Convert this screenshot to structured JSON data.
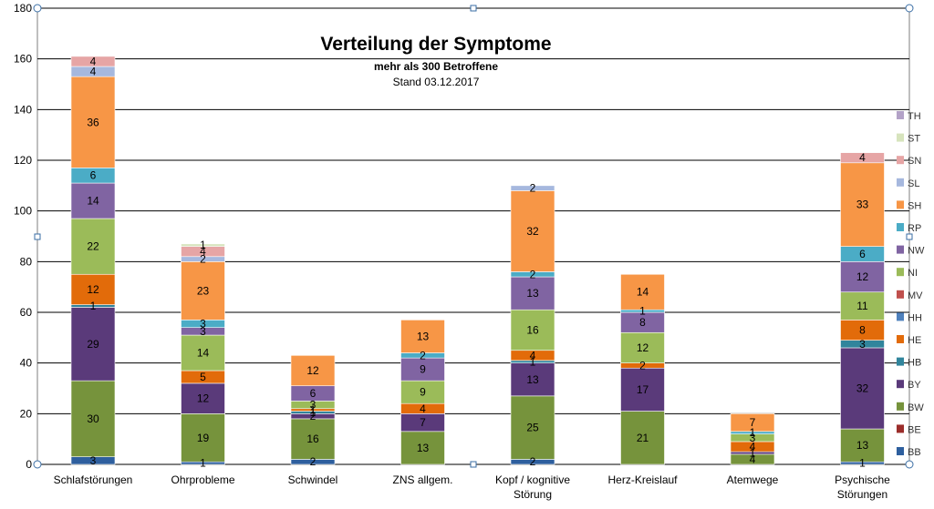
{
  "chart_data": {
    "type": "bar",
    "stacked": true,
    "title": "Verteilung der Symptome",
    "subtitle": "mehr als 300 Betroffene",
    "note": "Stand 03.12.2017",
    "ylim": [
      0,
      180
    ],
    "yticks": [
      0,
      20,
      40,
      60,
      80,
      100,
      120,
      140,
      160,
      180
    ],
    "grid": true,
    "legend_position": "right",
    "categories": [
      [
        "Schlafstörungen"
      ],
      [
        "Ohrprobleme"
      ],
      [
        "Schwindel"
      ],
      [
        "ZNS allgem."
      ],
      [
        "Kopf / kognitive",
        "Störung"
      ],
      [
        "Herz-Kreislauf"
      ],
      [
        "Atemwege"
      ],
      [
        "Psychische",
        "Störungen"
      ]
    ],
    "series": [
      {
        "name": "BB",
        "color": "#2e5f9e",
        "values": [
          3,
          1,
          2,
          0,
          2,
          0,
          0,
          1
        ]
      },
      {
        "name": "BE",
        "color": "#9b2d2a",
        "values": [
          0,
          0,
          0,
          0,
          0,
          0,
          0,
          0
        ]
      },
      {
        "name": "BW",
        "color": "#76933c",
        "values": [
          30,
          19,
          16,
          13,
          25,
          21,
          4,
          13
        ]
      },
      {
        "name": "BY",
        "color": "#5a3a7a",
        "values": [
          29,
          12,
          2,
          7,
          13,
          17,
          1,
          32
        ]
      },
      {
        "name": "HB",
        "color": "#31859c",
        "values": [
          1,
          0,
          1,
          0,
          1,
          0,
          0,
          3
        ]
      },
      {
        "name": "HE",
        "color": "#e26b0a",
        "values": [
          12,
          5,
          1,
          4,
          4,
          2,
          4,
          8
        ]
      },
      {
        "name": "HH",
        "color": "#4f81bd",
        "values": [
          0,
          0,
          0,
          0,
          0,
          0,
          0,
          0
        ]
      },
      {
        "name": "MV",
        "color": "#c0504d",
        "values": [
          0,
          0,
          0,
          0,
          0,
          0,
          0,
          0
        ]
      },
      {
        "name": "NI",
        "color": "#9bbb59",
        "values": [
          22,
          14,
          3,
          9,
          16,
          12,
          3,
          11
        ]
      },
      {
        "name": "NW",
        "color": "#8064a2",
        "values": [
          14,
          3,
          6,
          9,
          13,
          8,
          0,
          12
        ]
      },
      {
        "name": "RP",
        "color": "#4bacc6",
        "values": [
          6,
          3,
          0,
          2,
          2,
          1,
          1,
          6
        ]
      },
      {
        "name": "SH",
        "color": "#f79646",
        "values": [
          36,
          23,
          12,
          13,
          32,
          14,
          7,
          33
        ]
      },
      {
        "name": "SL",
        "color": "#a6b8de",
        "values": [
          4,
          2,
          0,
          0,
          2,
          0,
          0,
          0
        ]
      },
      {
        "name": "SN",
        "color": "#e6a5a5",
        "values": [
          4,
          4,
          0,
          0,
          0,
          0,
          0,
          4
        ]
      },
      {
        "name": "ST",
        "color": "#d7e4bd",
        "values": [
          0,
          1,
          0,
          0,
          0,
          0,
          0,
          0
        ]
      },
      {
        "name": "TH",
        "color": "#b3a2c7",
        "values": [
          0,
          0,
          0,
          0,
          0,
          0,
          0,
          0
        ]
      }
    ]
  }
}
